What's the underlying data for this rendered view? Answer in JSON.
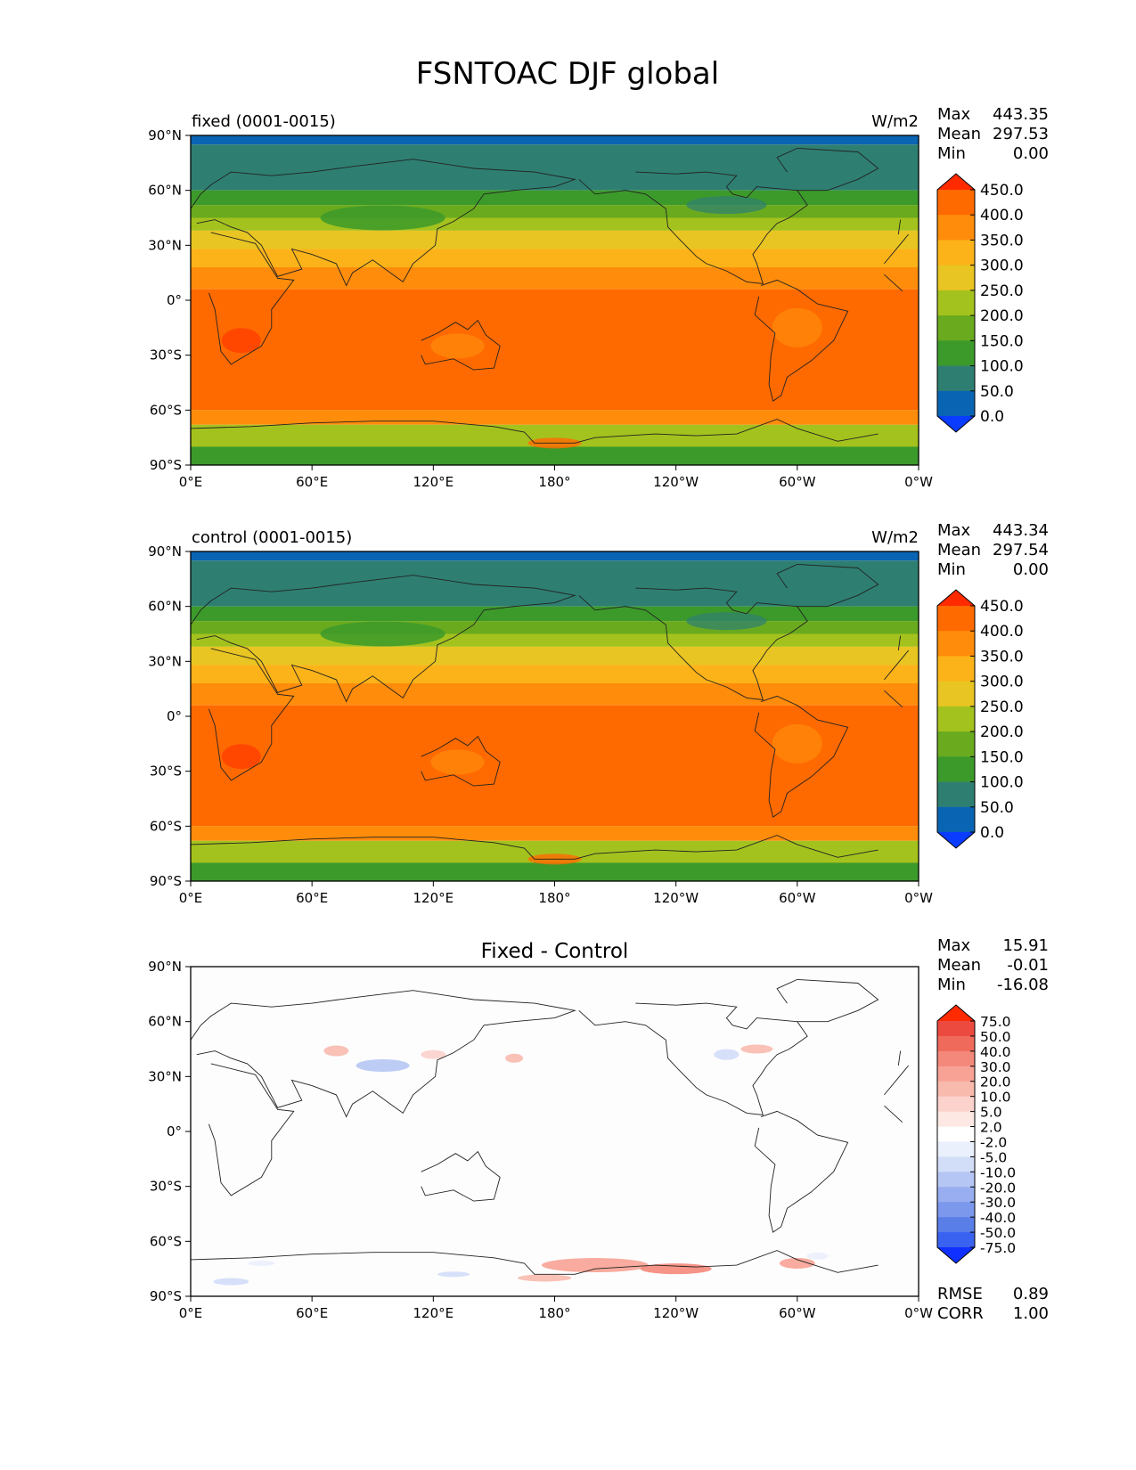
{
  "title": "FSNTOAC DJF global",
  "colors": {
    "abs_levels": [
      "#0a3cff",
      "#0a64b4",
      "#2e7f72",
      "#3c9a2a",
      "#6aaa1e",
      "#a4c21e",
      "#e8c522",
      "#fcb319",
      "#ff8c0b",
      "#ff6a00",
      "#ff2a00"
    ],
    "diff_levels": [
      "#1030ff",
      "#3a62f0",
      "#5a7ee8",
      "#7c98ec",
      "#98aef0",
      "#b6c6f4",
      "#d2ddf8",
      "#eaf0fc",
      "#ffffff",
      "#fde8e4",
      "#fbd2cc",
      "#f9baae",
      "#f7a294",
      "#f4887a",
      "#f06a5c",
      "#ec4a3e",
      "#ff2a00"
    ],
    "coast": "#222222"
  },
  "panels": [
    {
      "id": "fixed",
      "left_title": "fixed (0001-0015)",
      "center_title": "",
      "right_title": "W/m2",
      "stats": [
        {
          "label": "Max",
          "value": "443.35"
        },
        {
          "label": "Mean",
          "value": "297.53"
        },
        {
          "label": "Min",
          "value": "0.00"
        }
      ],
      "colorbar_type": "abs",
      "colorbar_labels": [
        "450.0",
        "400.0",
        "350.0",
        "300.0",
        "250.0",
        "200.0",
        "150.0",
        "100.0",
        "50.0",
        "0.0"
      ],
      "bottom_stats": []
    },
    {
      "id": "control",
      "left_title": "control (0001-0015)",
      "center_title": "",
      "right_title": "W/m2",
      "stats": [
        {
          "label": "Max",
          "value": "443.34"
        },
        {
          "label": "Mean",
          "value": "297.54"
        },
        {
          "label": "Min",
          "value": "0.00"
        }
      ],
      "colorbar_type": "abs",
      "colorbar_labels": [
        "450.0",
        "400.0",
        "350.0",
        "300.0",
        "250.0",
        "200.0",
        "150.0",
        "100.0",
        "50.0",
        "0.0"
      ],
      "bottom_stats": []
    },
    {
      "id": "diff",
      "left_title": "",
      "center_title": "Fixed - Control",
      "right_title": "",
      "stats": [
        {
          "label": "Max",
          "value": "15.91"
        },
        {
          "label": "Mean",
          "value": "-0.01"
        },
        {
          "label": "Min",
          "value": "-16.08"
        }
      ],
      "colorbar_type": "diff",
      "colorbar_labels": [
        "75.0",
        "50.0",
        "40.0",
        "30.0",
        "20.0",
        "10.0",
        "5.0",
        "2.0",
        "-2.0",
        "-5.0",
        "-10.0",
        "-20.0",
        "-30.0",
        "-40.0",
        "-50.0",
        "-75.0"
      ],
      "bottom_stats": [
        {
          "label": "RMSE",
          "value": "0.89"
        },
        {
          "label": "CORR",
          "value": "1.00"
        }
      ]
    }
  ],
  "chart_data": {
    "type": "heatmap",
    "projection": "cylindrical, central longitude 180",
    "x_ticks": [
      "0°E",
      "60°E",
      "120°E",
      "180°",
      "120°W",
      "60°W",
      "0°W"
    ],
    "y_ticks": [
      "90°N",
      "60°N",
      "30°N",
      "0°",
      "30°S",
      "60°S",
      "90°S"
    ],
    "xlim": [
      0,
      360
    ],
    "ylim": [
      -90,
      90
    ],
    "zonal_bands_fixed_control": [
      {
        "lat": [
          85,
          90
        ],
        "value_range": "0-50"
      },
      {
        "lat": [
          60,
          85
        ],
        "value_range": "50-100"
      },
      {
        "lat": [
          52,
          60
        ],
        "value_range": "100-150"
      },
      {
        "lat": [
          45,
          52
        ],
        "value_range": "150-200"
      },
      {
        "lat": [
          38,
          45
        ],
        "value_range": "200-250"
      },
      {
        "lat": [
          28,
          38
        ],
        "value_range": "250-300"
      },
      {
        "lat": [
          18,
          28
        ],
        "value_range": "300-350"
      },
      {
        "lat": [
          6,
          18
        ],
        "value_range": "350-400"
      },
      {
        "lat": [
          -60,
          6
        ],
        "value_range": "400-450"
      },
      {
        "lat": [
          -68,
          -60
        ],
        "value_range": "350-400"
      },
      {
        "lat": [
          -90,
          -68
        ],
        "value_range": "150-250"
      }
    ],
    "difference_summary": "Near-zero (white) almost everywhere; small positive (red) patches near 40-50°N and over Antarctic coast around 150-80°W; small negative (blue) patches over central Asia near 30-40°N and North America."
  }
}
